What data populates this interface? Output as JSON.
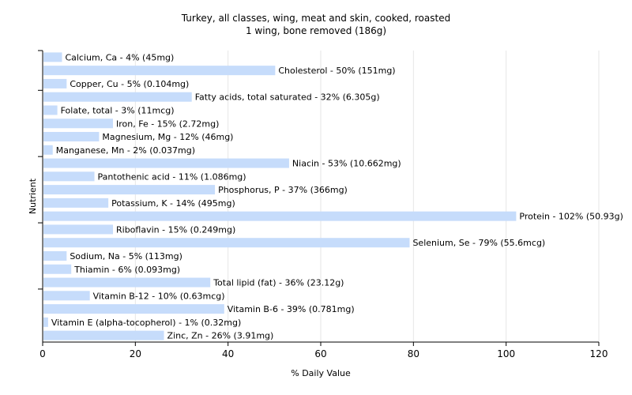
{
  "chart_data": {
    "type": "bar",
    "orientation": "horizontal",
    "title": "Turkey, all classes, wing, meat and skin, cooked, roasted",
    "subtitle": "1 wing, bone removed (186g)",
    "xlabel": "% Daily Value",
    "ylabel": "Nutrient",
    "xlim": [
      0,
      120
    ],
    "xticks": [
      "0",
      "20",
      "40",
      "60",
      "80",
      "100",
      "120"
    ],
    "grid": true,
    "bar_color": "#c6dcfb",
    "categories": [
      "Calcium, Ca",
      "Cholesterol",
      "Copper, Cu",
      "Fatty acids, total saturated",
      "Folate, total",
      "Iron, Fe",
      "Magnesium, Mg",
      "Manganese, Mn",
      "Niacin",
      "Pantothenic acid",
      "Phosphorus, P",
      "Potassium, K",
      "Protein",
      "Riboflavin",
      "Selenium, Se",
      "Sodium, Na",
      "Thiamin",
      "Total lipid (fat)",
      "Vitamin B-12",
      "Vitamin B-6",
      "Vitamin E (alpha-tocopherol)",
      "Zinc, Zn"
    ],
    "values": [
      4,
      50,
      5,
      32,
      3,
      15,
      12,
      2,
      53,
      11,
      37,
      14,
      102,
      15,
      79,
      5,
      6,
      36,
      10,
      39,
      1,
      26
    ],
    "labels": [
      "Calcium, Ca - 4% (45mg)",
      "Cholesterol - 50% (151mg)",
      "Copper, Cu - 5% (0.104mg)",
      "Fatty acids, total saturated - 32% (6.305g)",
      "Folate, total - 3% (11mcg)",
      "Iron, Fe - 15% (2.72mg)",
      "Magnesium, Mg - 12% (46mg)",
      "Manganese, Mn - 2% (0.037mg)",
      "Niacin - 53% (10.662mg)",
      "Pantothenic acid - 11% (1.086mg)",
      "Phosphorus, P - 37% (366mg)",
      "Potassium, K - 14% (495mg)",
      "Protein - 102% (50.93g)",
      "Riboflavin - 15% (0.249mg)",
      "Selenium, Se - 79% (55.6mcg)",
      "Sodium, Na - 5% (113mg)",
      "Thiamin - 6% (0.093mg)",
      "Total lipid (fat) - 36% (23.12g)",
      "Vitamin B-12 - 10% (0.63mcg)",
      "Vitamin B-6 - 39% (0.781mg)",
      "Vitamin E (alpha-tocopherol) - 1% (0.32mg)",
      "Zinc, Zn - 26% (3.91mg)"
    ]
  }
}
